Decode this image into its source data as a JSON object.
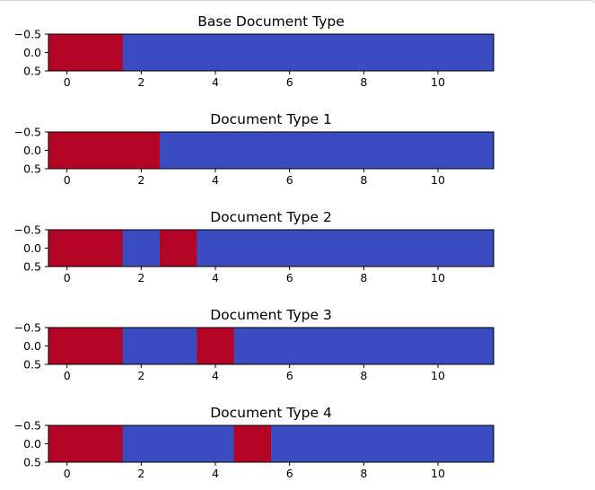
{
  "colors": {
    "red": "#b40426",
    "blue": "#3b4cc0"
  },
  "chart_data": [
    {
      "type": "heatmap",
      "title": "Base Document Type",
      "x": [
        0,
        1,
        2,
        3,
        4,
        5,
        6,
        7,
        8,
        9,
        10,
        11
      ],
      "values": [
        1,
        1,
        0,
        0,
        0,
        0,
        0,
        0,
        0,
        0,
        0,
        0
      ],
      "xlim": [
        -0.5,
        11.5
      ],
      "ylim": [
        -0.5,
        0.5
      ],
      "xticks": [
        "0",
        "2",
        "4",
        "6",
        "8",
        "10"
      ],
      "yticks": [
        "−0.5",
        "0.0",
        "0.5"
      ],
      "grid": false
    },
    {
      "type": "heatmap",
      "title": "Document Type 1",
      "x": [
        0,
        1,
        2,
        3,
        4,
        5,
        6,
        7,
        8,
        9,
        10,
        11
      ],
      "values": [
        1,
        1,
        1,
        0,
        0,
        0,
        0,
        0,
        0,
        0,
        0,
        0
      ],
      "xlim": [
        -0.5,
        11.5
      ],
      "ylim": [
        -0.5,
        0.5
      ],
      "xticks": [
        "0",
        "2",
        "4",
        "6",
        "8",
        "10"
      ],
      "yticks": [
        "−0.5",
        "0.0",
        "0.5"
      ],
      "grid": false
    },
    {
      "type": "heatmap",
      "title": "Document Type 2",
      "x": [
        0,
        1,
        2,
        3,
        4,
        5,
        6,
        7,
        8,
        9,
        10,
        11
      ],
      "values": [
        1,
        1,
        0,
        1,
        0,
        0,
        0,
        0,
        0,
        0,
        0,
        0
      ],
      "xlim": [
        -0.5,
        11.5
      ],
      "ylim": [
        -0.5,
        0.5
      ],
      "xticks": [
        "0",
        "2",
        "4",
        "6",
        "8",
        "10"
      ],
      "yticks": [
        "−0.5",
        "0.0",
        "0.5"
      ],
      "grid": false
    },
    {
      "type": "heatmap",
      "title": "Document Type 3",
      "x": [
        0,
        1,
        2,
        3,
        4,
        5,
        6,
        7,
        8,
        9,
        10,
        11
      ],
      "values": [
        1,
        1,
        0,
        0,
        1,
        0,
        0,
        0,
        0,
        0,
        0,
        0
      ],
      "xlim": [
        -0.5,
        11.5
      ],
      "ylim": [
        -0.5,
        0.5
      ],
      "xticks": [
        "0",
        "2",
        "4",
        "6",
        "8",
        "10"
      ],
      "yticks": [
        "−0.5",
        "0.0",
        "0.5"
      ],
      "grid": false
    },
    {
      "type": "heatmap",
      "title": "Document Type 4",
      "x": [
        0,
        1,
        2,
        3,
        4,
        5,
        6,
        7,
        8,
        9,
        10,
        11
      ],
      "values": [
        1,
        1,
        0,
        0,
        0,
        1,
        0,
        0,
        0,
        0,
        0,
        0
      ],
      "xlim": [
        -0.5,
        11.5
      ],
      "ylim": [
        -0.5,
        0.5
      ],
      "xticks": [
        "0",
        "2",
        "4",
        "6",
        "8",
        "10"
      ],
      "yticks": [
        "−0.5",
        "0.0",
        "0.5"
      ],
      "grid": false
    }
  ]
}
